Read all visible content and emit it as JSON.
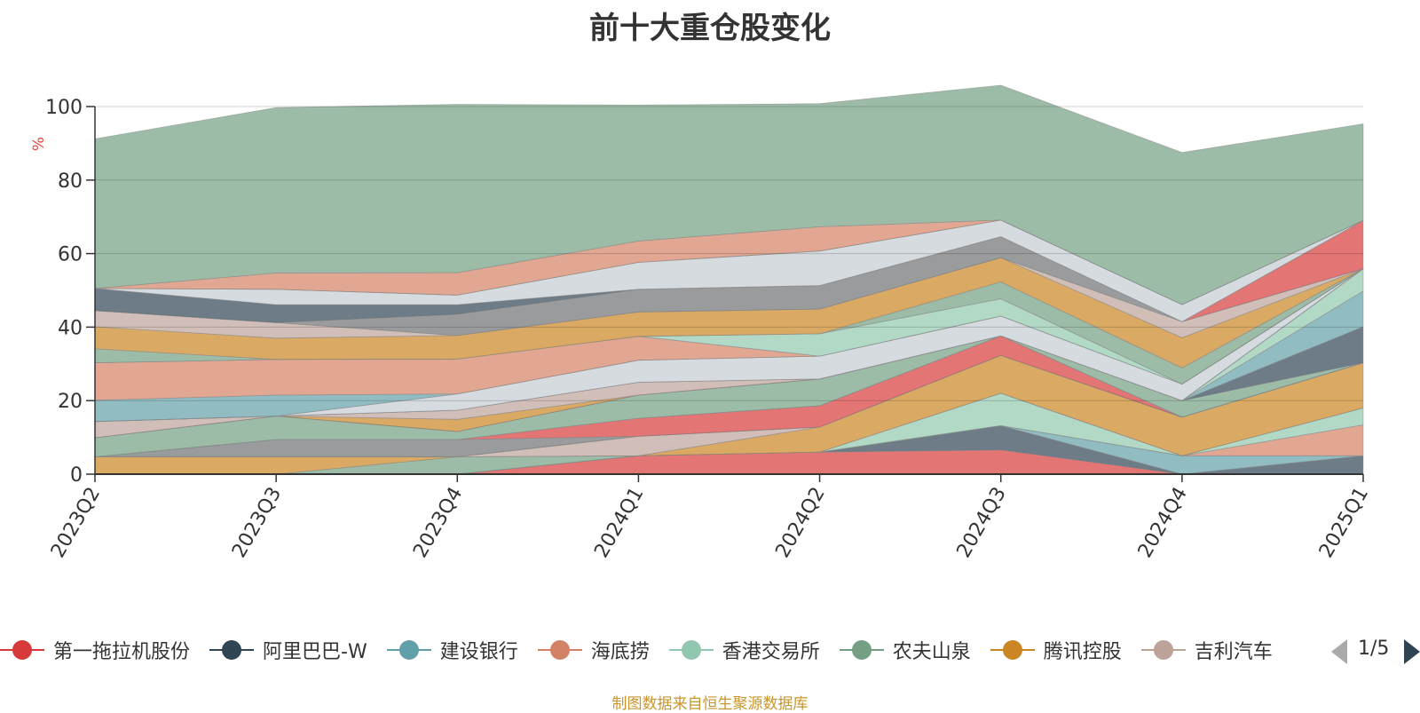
{
  "title": "前十大重仓股变化",
  "unit": "%",
  "source": "制图数据来自恒生聚源数据库",
  "pager": {
    "text": "1/5"
  },
  "legend": [
    {
      "name": "第一拖拉机股份",
      "color": "#d73a3a"
    },
    {
      "name": "阿里巴巴-W",
      "color": "#2f4554"
    },
    {
      "name": "建设银行",
      "color": "#61a0a8"
    },
    {
      "name": "海底捞",
      "color": "#d48265"
    },
    {
      "name": "香港交易所",
      "color": "#91c7ae"
    },
    {
      "name": "农夫山泉",
      "color": "#749f83"
    },
    {
      "name": "腾讯控股",
      "color": "#ca8622"
    },
    {
      "name": "吉利汽车",
      "color": "#bda29a"
    }
  ],
  "chart_data": {
    "type": "area",
    "stacked": true,
    "title": "前十大重仓股变化",
    "ylabel": "%",
    "ylim": [
      0,
      100
    ],
    "yticks": [
      0,
      20,
      40,
      60,
      80,
      100
    ],
    "categories": [
      "2023Q2",
      "2023Q3",
      "2023Q4",
      "2024Q1",
      "2024Q2",
      "2024Q3",
      "2024Q4",
      "2025Q1"
    ],
    "grid": true,
    "legend_position": "bottom",
    "series": [
      {
        "color": "#d73a3a",
        "values": [
          0,
          0,
          0,
          5,
          6,
          6.6,
          0,
          0
        ]
      },
      {
        "color": "#2f4554",
        "values": [
          0,
          0,
          0,
          0,
          0,
          6.6,
          0,
          5
        ]
      },
      {
        "color": "#61a0a8",
        "values": [
          0,
          0,
          0,
          0,
          0,
          0,
          5,
          0
        ]
      },
      {
        "color": "#d48265",
        "values": [
          0,
          0,
          0,
          0,
          0,
          0,
          0,
          8.4
        ]
      },
      {
        "color": "#91c7ae",
        "values": [
          0,
          0,
          0,
          0,
          0,
          8.8,
          0,
          4.6
        ]
      },
      {
        "color": "#749f83",
        "values": [
          0,
          0,
          4.7,
          0,
          0,
          0,
          0,
          0
        ]
      },
      {
        "color": "#ca8622",
        "values": [
          4.7,
          4.7,
          0,
          0,
          6.8,
          10.3,
          10.5,
          12.3
        ]
      },
      {
        "color": "#bda29a",
        "values": [
          0,
          0,
          0,
          5.3,
          0,
          0,
          0,
          0
        ]
      },
      {
        "color": "#e8d3d3",
        "values": [
          0,
          0,
          0,
          0,
          0,
          0,
          0,
          0
        ]
      },
      {
        "color": "#6e7074",
        "values": [
          0,
          4.7,
          4.7,
          0,
          0,
          0,
          0,
          0
        ]
      },
      {
        "color": "#d73a3a",
        "values": [
          0,
          0,
          0,
          4.9,
          5.8,
          5.3,
          0,
          0
        ]
      },
      {
        "color": "#c4ccd3",
        "values": [
          0,
          0,
          0,
          0,
          0,
          0,
          0,
          0
        ]
      },
      {
        "color": "#749f83",
        "values": [
          5.2,
          6.4,
          2.2,
          6.3,
          7.3,
          0,
          4.5,
          0
        ]
      },
      {
        "color": "#2f4554",
        "values": [
          0,
          0,
          0,
          0,
          0,
          0,
          0,
          9.8
        ]
      },
      {
        "color": "#61a0a8",
        "values": [
          0,
          0,
          0,
          0,
          0,
          0,
          0,
          9.7
        ]
      },
      {
        "color": "#91c7ae",
        "values": [
          0,
          0,
          0,
          0,
          0,
          0,
          0,
          6.1
        ]
      },
      {
        "color": "#ca8622",
        "values": [
          0,
          0,
          3.3,
          0,
          0,
          0,
          0,
          0
        ]
      },
      {
        "color": "#bda29a",
        "values": [
          4.4,
          0,
          2.5,
          3.5,
          0,
          0,
          0,
          0
        ]
      },
      {
        "color": "#d48265",
        "values": [
          0,
          0,
          0,
          0,
          0,
          0,
          0,
          0
        ]
      },
      {
        "color": "#6e7074",
        "values": [
          0,
          0,
          0,
          0,
          0,
          0,
          0,
          0
        ]
      },
      {
        "color": "#c4ccd3",
        "values": [
          0,
          0,
          4.4,
          6,
          6.2,
          5.4,
          4.5,
          0
        ]
      },
      {
        "color": "#61a0a8",
        "values": [
          5.8,
          5.7,
          0,
          0,
          0,
          0,
          0,
          0
        ]
      },
      {
        "color": "#d48265",
        "values": [
          10.2,
          9.7,
          9.5,
          6.5,
          0,
          0,
          0,
          0
        ]
      },
      {
        "color": "#91c7ae",
        "values": [
          0,
          0,
          0,
          0,
          6.1,
          4.7,
          0,
          0
        ]
      },
      {
        "color": "#749f83",
        "values": [
          3.8,
          0,
          0,
          0,
          0,
          4.6,
          4.4,
          0
        ]
      },
      {
        "color": "#ca8622",
        "values": [
          6,
          5.8,
          6.4,
          6.6,
          6.7,
          6.6,
          8.2,
          0
        ]
      },
      {
        "color": "#bda29a",
        "values": [
          4.4,
          4.2,
          0,
          0,
          0,
          0,
          4.4,
          0
        ]
      },
      {
        "color": "#6e7074",
        "values": [
          0,
          0,
          5.8,
          6.2,
          6.4,
          5.7,
          0,
          0
        ]
      },
      {
        "color": "#d73a3a",
        "values": [
          0,
          0,
          0,
          0,
          0,
          0,
          0,
          13.1
        ]
      },
      {
        "color": "#2f4554",
        "values": [
          6,
          4.9,
          2.6,
          0,
          0,
          0,
          0,
          0
        ]
      },
      {
        "color": "#c4ccd3",
        "values": [
          0,
          4.2,
          2.6,
          7.3,
          9.4,
          4.5,
          4.6,
          0
        ]
      },
      {
        "color": "#749f83",
        "values": [
          0,
          0,
          0,
          0,
          0,
          0,
          0,
          0
        ]
      },
      {
        "color": "#d48265",
        "values": [
          0,
          4.4,
          6.1,
          5.8,
          6.6,
          0,
          0,
          0
        ]
      },
      {
        "color": "#749f83",
        "values": [
          40.7,
          45,
          45.8,
          37,
          33.5,
          36.7,
          41.4,
          26.3
        ]
      }
    ]
  }
}
